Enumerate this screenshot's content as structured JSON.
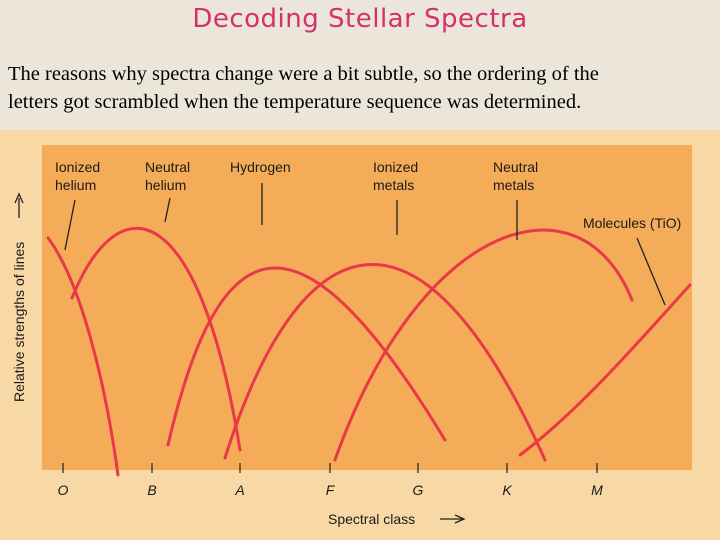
{
  "header": {
    "title": "Decoding Stellar Spectra"
  },
  "body": {
    "lines": [
      "The reasons why spectra change were a bit subtle, so the ordering of the",
      "letters got scrambled when the temperature sequence was determined."
    ]
  },
  "figure": {
    "y_axis_label": "Relative strengths of lines",
    "x_axis_label": "Spectral class",
    "curve_labels": [
      [
        "Ionized",
        "helium"
      ],
      [
        "Neutral",
        "helium"
      ],
      [
        "Hydrogen"
      ],
      [
        "Ionized",
        "metals"
      ],
      [
        "Neutral",
        "metals"
      ],
      [
        "Molecules (TiO)"
      ]
    ],
    "classes": [
      "O",
      "B",
      "A",
      "F",
      "G",
      "K",
      "M"
    ]
  }
}
